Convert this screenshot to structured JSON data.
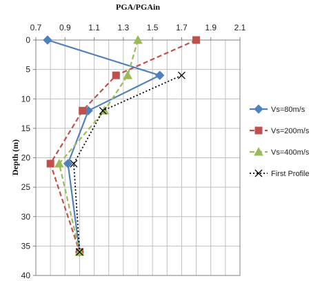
{
  "chart_data": {
    "type": "line",
    "title": "PGA/PGAin",
    "xlabel": "PGA/PGAin",
    "ylabel": "Depth (m)",
    "xlim": [
      0.7,
      2.1
    ],
    "ylim": [
      0,
      40
    ],
    "y_inverted": true,
    "x_axis_position": "top",
    "x_ticks": [
      "0.7",
      "0.9",
      "1.1",
      "1.3",
      "1.5",
      "1.7",
      "1.9",
      "2.1"
    ],
    "y_ticks": [
      "0",
      "5",
      "10",
      "15",
      "20",
      "25",
      "30",
      "35",
      "40"
    ],
    "x_minor_step": 0.1,
    "grid": true,
    "legend_position": "right",
    "series": [
      {
        "name": "Vs=80m/s",
        "color": "#4f81bd",
        "line": "solid",
        "marker": "diamond",
        "points": [
          [
            0.78,
            0
          ],
          [
            1.55,
            6
          ],
          [
            1.06,
            12
          ],
          [
            0.92,
            21
          ],
          [
            1.0,
            36
          ]
        ]
      },
      {
        "name": "Vs=200m/s",
        "color": "#c0504d",
        "line": "dashed",
        "marker": "square",
        "points": [
          [
            1.8,
            0
          ],
          [
            1.25,
            6
          ],
          [
            1.02,
            12
          ],
          [
            0.8,
            21
          ],
          [
            1.0,
            36
          ]
        ]
      },
      {
        "name": "Vs=400m/s",
        "color": "#9bbb59",
        "line": "dashed",
        "marker": "triangle",
        "points": [
          [
            1.4,
            0
          ],
          [
            1.33,
            6
          ],
          [
            1.17,
            12
          ],
          [
            0.86,
            21
          ],
          [
            1.0,
            36
          ]
        ]
      },
      {
        "name": "First Profile",
        "color": "#000000",
        "line": "dotted",
        "marker": "x",
        "points": [
          [
            1.7,
            6
          ],
          [
            1.16,
            12
          ],
          [
            0.96,
            21
          ],
          [
            1.0,
            36
          ]
        ]
      }
    ]
  }
}
